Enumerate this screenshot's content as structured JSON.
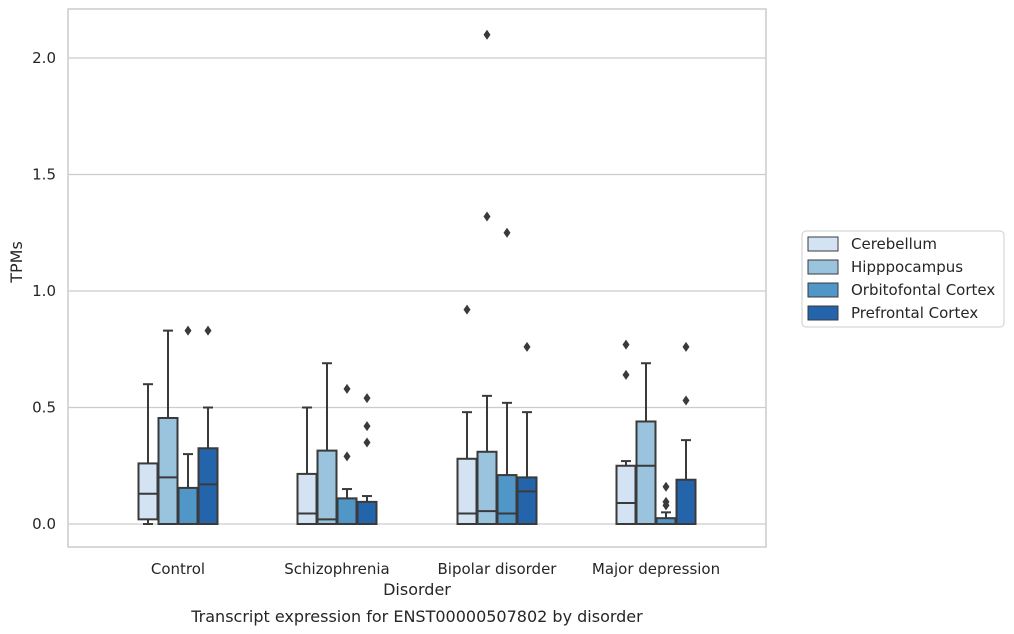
{
  "caption": "Transcript expression for ENST00000507802 by disorder",
  "chart_data": {
    "type": "box",
    "xlabel": "Disorder",
    "ylabel": "TPMs",
    "ylim": [
      -0.1,
      2.22
    ],
    "yticks": [
      0.0,
      0.5,
      1.0,
      1.5,
      2.0
    ],
    "ytick_labels": [
      "0.0",
      "0.5",
      "1.0",
      "1.5",
      "2.0"
    ],
    "grid": "horizontal",
    "legend_position": "right",
    "categories": [
      "Control",
      "Schizophrenia",
      "Bipolar disorder",
      "Major depression"
    ],
    "series": [
      {
        "name": "Cerebellum",
        "color": "#d4e3f3",
        "boxes": [
          {
            "whisker_low": 0.0,
            "q1": 0.02,
            "median": 0.13,
            "q3": 0.26,
            "whisker_high": 0.6,
            "outliers": []
          },
          {
            "whisker_low": 0.0,
            "q1": 0.0,
            "median": 0.045,
            "q3": 0.215,
            "whisker_high": 0.5,
            "outliers": []
          },
          {
            "whisker_low": 0.0,
            "q1": 0.0,
            "median": 0.045,
            "q3": 0.28,
            "whisker_high": 0.48,
            "outliers": [
              0.92
            ]
          },
          {
            "whisker_low": 0.0,
            "q1": 0.0,
            "median": 0.09,
            "q3": 0.25,
            "whisker_high": 0.27,
            "outliers": [
              0.64,
              0.77
            ]
          }
        ]
      },
      {
        "name": "Hipppocampus",
        "color": "#9ac3dd",
        "boxes": [
          {
            "whisker_low": 0.0,
            "q1": 0.0,
            "median": 0.2,
            "q3": 0.455,
            "whisker_high": 0.83,
            "outliers": []
          },
          {
            "whisker_low": 0.0,
            "q1": 0.0,
            "median": 0.02,
            "q3": 0.315,
            "whisker_high": 0.69,
            "outliers": []
          },
          {
            "whisker_low": 0.0,
            "q1": 0.0,
            "median": 0.055,
            "q3": 0.31,
            "whisker_high": 0.55,
            "outliers": [
              1.32,
              2.1
            ]
          },
          {
            "whisker_low": 0.0,
            "q1": 0.0,
            "median": 0.25,
            "q3": 0.44,
            "whisker_high": 0.69,
            "outliers": []
          }
        ]
      },
      {
        "name": "Orbitofontal Cortex",
        "color": "#5096c7",
        "boxes": [
          {
            "whisker_low": 0.0,
            "q1": 0.0,
            "median": 0.0,
            "q3": 0.155,
            "whisker_high": 0.3,
            "outliers": [
              0.83
            ]
          },
          {
            "whisker_low": 0.0,
            "q1": 0.0,
            "median": 0.0,
            "q3": 0.11,
            "whisker_high": 0.15,
            "outliers": [
              0.29,
              0.58
            ]
          },
          {
            "whisker_low": 0.0,
            "q1": 0.0,
            "median": 0.045,
            "q3": 0.21,
            "whisker_high": 0.52,
            "outliers": [
              1.25
            ]
          },
          {
            "whisker_low": 0.0,
            "q1": 0.0,
            "median": 0.0,
            "q3": 0.025,
            "whisker_high": 0.05,
            "outliers": [
              0.08,
              0.095,
              0.16
            ]
          }
        ]
      },
      {
        "name": "Prefrontal Cortex",
        "color": "#2464aa",
        "boxes": [
          {
            "whisker_low": 0.0,
            "q1": 0.0,
            "median": 0.17,
            "q3": 0.325,
            "whisker_high": 0.5,
            "outliers": [
              0.83
            ]
          },
          {
            "whisker_low": 0.0,
            "q1": 0.0,
            "median": 0.0,
            "q3": 0.095,
            "whisker_high": 0.12,
            "outliers": [
              0.35,
              0.42,
              0.54
            ]
          },
          {
            "whisker_low": 0.0,
            "q1": 0.0,
            "median": 0.14,
            "q3": 0.2,
            "whisker_high": 0.48,
            "outliers": [
              0.76
            ]
          },
          {
            "whisker_low": 0.0,
            "q1": 0.0,
            "median": 0.0,
            "q3": 0.19,
            "whisker_high": 0.36,
            "outliers": [
              0.53,
              0.76
            ]
          }
        ]
      }
    ]
  }
}
